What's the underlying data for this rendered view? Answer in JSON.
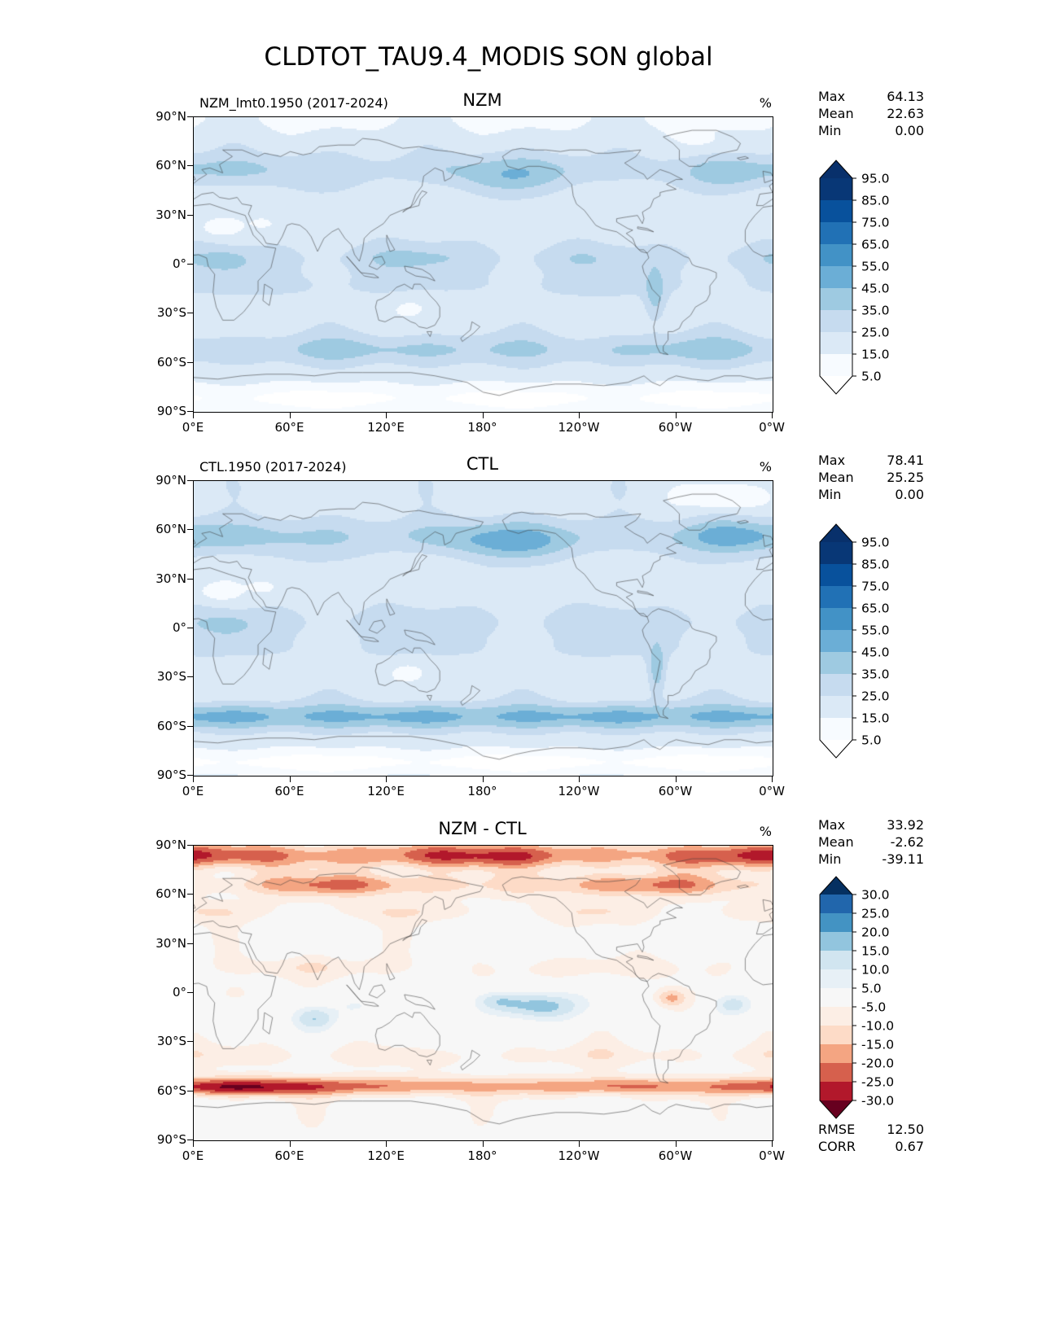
{
  "figure": {
    "title": "CLDTOT_TAU9.4_MODIS SON global"
  },
  "axes": {
    "lat_labels": [
      "90°N",
      "60°N",
      "30°N",
      "0°",
      "30°S",
      "60°S",
      "90°S"
    ],
    "lon_labels": [
      "0°E",
      "60°E",
      "120°E",
      "180°",
      "120°W",
      "60°W",
      "0°W"
    ]
  },
  "panels": [
    {
      "subtitle": "NZM_lmt0.1950 (2017-2024)",
      "title": "NZM",
      "unit": "%",
      "stats": {
        "max_label": "Max",
        "max": "64.13",
        "mean_label": "Mean",
        "mean": "22.63",
        "min_label": "Min",
        "min": "0.00"
      }
    },
    {
      "subtitle": "CTL.1950 (2017-2024)",
      "title": "CTL",
      "unit": "%",
      "stats": {
        "max_label": "Max",
        "max": "78.41",
        "mean_label": "Mean",
        "mean": "25.25",
        "min_label": "Min",
        "min": "0.00"
      }
    },
    {
      "subtitle": "",
      "title": "NZM - CTL",
      "unit": "%",
      "stats": {
        "max_label": "Max",
        "max": "33.92",
        "mean_label": "Mean",
        "mean": "-2.62",
        "min_label": "Min",
        "min": "-39.11"
      },
      "extra": {
        "rmse_label": "RMSE",
        "rmse": "12.50",
        "corr_label": "CORR",
        "corr": "0.67"
      }
    }
  ],
  "colorbars": {
    "sequential": {
      "tick_labels": [
        "95.0",
        "85.0",
        "75.0",
        "65.0",
        "55.0",
        "45.0",
        "35.0",
        "25.0",
        "15.0",
        "5.0"
      ],
      "segment_colors": [
        "#083776",
        "#08519c",
        "#2171b5",
        "#4292c6",
        "#6baed6",
        "#9ecae1",
        "#c6dbef",
        "#dbe9f6",
        "#f7fbff"
      ],
      "arrow_top": "#08306b",
      "arrow_bottom": "#ffffff"
    },
    "diverging": {
      "tick_labels": [
        "30.0",
        "25.0",
        "20.0",
        "15.0",
        "10.0",
        "5.0",
        "-5.0",
        "-10.0",
        "-15.0",
        "-20.0",
        "-25.0",
        "-30.0"
      ],
      "segment_colors": [
        "#2166ac",
        "#4393c3",
        "#92c5de",
        "#d1e5f0",
        "#e7f0f6",
        "#f7f7f7",
        "#fceee5",
        "#fddbc7",
        "#f4a582",
        "#d6604d",
        "#b2182b"
      ],
      "arrow_top": "#053061",
      "arrow_bottom": "#67001f"
    }
  },
  "chart_data": {
    "type": "heatmap",
    "subtype": "global lat-lon filled-contour maps, equirectangular, longitude 0°E eastward to 0°W (centered on 180°)",
    "title": "CLDTOT_TAU9.4_MODIS SON global",
    "units": "%",
    "panels": [
      {
        "name": "NZM",
        "subtitle": "NZM_lmt0.1950 (2017-2024)",
        "colormap": "Blues",
        "contour_levels": [
          5,
          15,
          25,
          35,
          45,
          55,
          65,
          75,
          85,
          95
        ],
        "stats": {
          "max": 64.13,
          "mean": 22.63,
          "min": 0.0
        },
        "description": "Total cloud fraction; moderate zonal bands near 50-65N and 45-60S, ITCZ band near equator, low values over Sahara/Australia/Antarctica, maximum along Andes/SE Pacific"
      },
      {
        "name": "CTL",
        "subtitle": "CTL.1950 (2017-2024)",
        "colormap": "Blues",
        "contour_levels": [
          5,
          15,
          25,
          35,
          45,
          55,
          65,
          75,
          85,
          95
        ],
        "stats": {
          "max": 78.41,
          "mean": 25.25,
          "min": 0.0
        },
        "description": "Similar pattern to NZM but with much stronger Southern Ocean storm-track band (45-60S) and stronger northern high-latitude cloudiness"
      },
      {
        "name": "NZM - CTL",
        "colormap": "RdBu",
        "contour_levels": [
          -30,
          -25,
          -20,
          -15,
          -10,
          -5,
          5,
          10,
          15,
          20,
          25,
          30
        ],
        "stats": {
          "max": 33.92,
          "mean": -2.62,
          "min": -39.11,
          "rmse": 12.5,
          "corr": 0.67
        },
        "description": "Difference map: strong negative (red) over Arctic/high northern latitudes and along 50-65S Southern Ocean ring; positive (blue) patches over tropical Indian Ocean, central equatorial Pacific and tropical Atlantic; negative spot over NW South America"
      }
    ],
    "x_axis": {
      "label": "longitude",
      "ticks": [
        "0°E",
        "60°E",
        "120°E",
        "180°",
        "120°W",
        "60°W",
        "0°W"
      ]
    },
    "y_axis": {
      "label": "latitude",
      "ticks": [
        "90°N",
        "60°N",
        "30°N",
        "0°",
        "30°S",
        "60°S",
        "90°S"
      ]
    }
  }
}
